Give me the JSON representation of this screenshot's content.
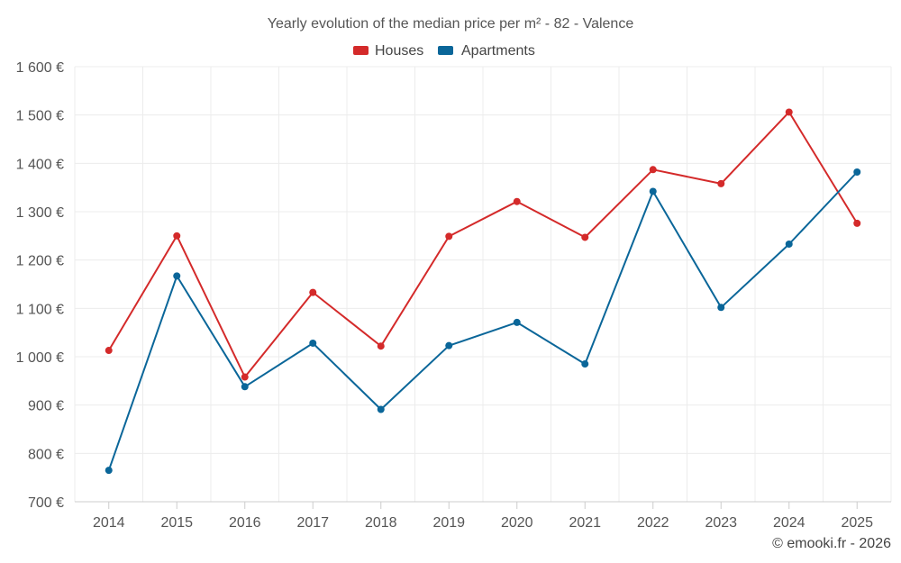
{
  "chart_data": {
    "type": "line",
    "title": "Yearly evolution of the median price per m² - 82 - Valence",
    "categories": [
      "2014",
      "2015",
      "2016",
      "2017",
      "2018",
      "2019",
      "2020",
      "2021",
      "2022",
      "2023",
      "2024",
      "2025"
    ],
    "series": [
      {
        "name": "Houses",
        "color": "#d42a2a",
        "values": [
          1013,
          1250,
          958,
          1133,
          1022,
          1249,
          1321,
          1247,
          1387,
          1358,
          1506,
          1276
        ]
      },
      {
        "name": "Apartments",
        "color": "#0a6699",
        "values": [
          765,
          1167,
          938,
          1028,
          891,
          1023,
          1071,
          985,
          1342,
          1102,
          1233,
          1382
        ]
      }
    ],
    "y_ticks": [
      "700 €",
      "800 €",
      "900 €",
      "1 000 €",
      "1 100 €",
      "1 200 €",
      "1 300 €",
      "1 400 €",
      "1 500 €",
      "1 600 €"
    ],
    "ylim": [
      700,
      1600
    ],
    "xlabel": "",
    "ylabel": "",
    "grid": true,
    "legend_position": "top-center",
    "credit": "© emooki.fr - 2026"
  }
}
